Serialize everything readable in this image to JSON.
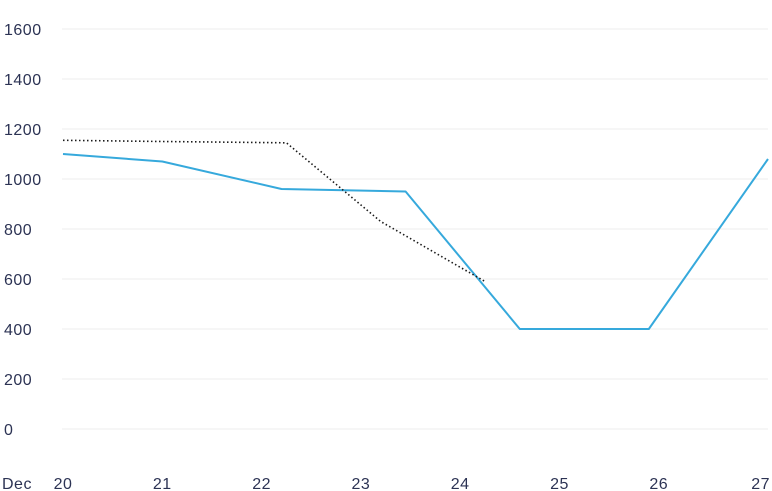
{
  "chart_data": {
    "type": "line",
    "title": "",
    "xlabel": "",
    "ylabel": "",
    "x_prefix": "Dec",
    "x_ticks": [
      "20",
      "21",
      "22",
      "23",
      "24",
      "25",
      "26",
      "27"
    ],
    "y_ticks": [
      "0",
      "200",
      "400",
      "600",
      "800",
      "1000",
      "1200",
      "1400",
      "1600"
    ],
    "ylim": [
      0,
      1600
    ],
    "xlim": [
      20,
      27.1
    ],
    "grid": true,
    "legend": "none",
    "series": [
      {
        "style": "solid",
        "color": "#36a9dc",
        "points": [
          {
            "x": 20.0,
            "y": 1100
          },
          {
            "x": 21.0,
            "y": 1070
          },
          {
            "x": 22.2,
            "y": 960
          },
          {
            "x": 23.45,
            "y": 950
          },
          {
            "x": 24.6,
            "y": 400
          },
          {
            "x": 25.9,
            "y": 400
          },
          {
            "x": 27.1,
            "y": 1080
          }
        ]
      },
      {
        "style": "dotted",
        "color": "#1a1a1a",
        "points": [
          {
            "x": 20.0,
            "y": 1155
          },
          {
            "x": 21.0,
            "y": 1150
          },
          {
            "x": 22.25,
            "y": 1145
          },
          {
            "x": 23.2,
            "y": 830
          },
          {
            "x": 24.25,
            "y": 590
          }
        ]
      }
    ]
  }
}
